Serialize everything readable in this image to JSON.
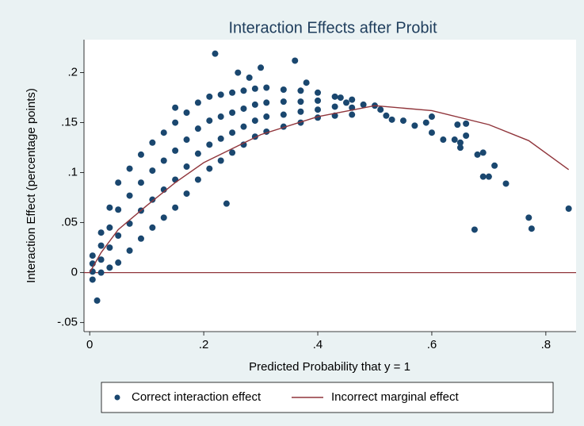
{
  "chart_data": {
    "type": "scatter",
    "title": "Interaction Effects after Probit",
    "x_label": "Predicted Probability that y = 1",
    "y_label": "Interaction Effect (percentage points)",
    "xlim": [
      -0.01,
      0.853
    ],
    "ylim": [
      -0.059,
      0.233
    ],
    "xticks": [
      0,
      {
        "value": 0.2,
        "label": ".2"
      },
      {
        "value": 0.4,
        "label": ".4"
      },
      {
        "value": 0.6,
        "label": ".6"
      },
      {
        "value": 0.8,
        "label": ".8"
      }
    ],
    "yticks": [
      {
        "value": -0.05,
        "label": "-.05"
      },
      0,
      {
        "value": 0.05,
        "label": ".05"
      },
      {
        "value": 0.1,
        "label": ".1"
      },
      {
        "value": 0.15,
        "label": ".15"
      },
      {
        "value": 0.2,
        "label": ".2"
      }
    ],
    "reference_line": 0,
    "legend": "bottom",
    "series": [
      {
        "name": "Correct interaction effect",
        "type": "scatter",
        "color": "#1a476f",
        "x": [
          0.005,
          0.005,
          0.005,
          0.005,
          0.02,
          0.02,
          0.02,
          0.02,
          0.035,
          0.035,
          0.035,
          0.035,
          0.05,
          0.05,
          0.05,
          0.05,
          0.07,
          0.07,
          0.07,
          0.07,
          0.09,
          0.09,
          0.09,
          0.09,
          0.11,
          0.11,
          0.11,
          0.11,
          0.13,
          0.13,
          0.13,
          0.13,
          0.15,
          0.15,
          0.15,
          0.15,
          0.17,
          0.17,
          0.17,
          0.17,
          0.19,
          0.19,
          0.19,
          0.19,
          0.21,
          0.21,
          0.21,
          0.21,
          0.23,
          0.23,
          0.23,
          0.23,
          0.25,
          0.25,
          0.25,
          0.25,
          0.27,
          0.27,
          0.27,
          0.27,
          0.29,
          0.29,
          0.29,
          0.29,
          0.31,
          0.31,
          0.31,
          0.31,
          0.34,
          0.34,
          0.34,
          0.34,
          0.37,
          0.37,
          0.37,
          0.37,
          0.4,
          0.4,
          0.4,
          0.4,
          0.43,
          0.43,
          0.43,
          0.46,
          0.46,
          0.46,
          0.013,
          0.24,
          0.22,
          0.36,
          0.675,
          0.77,
          0.775,
          0.84,
          0.73,
          0.7,
          0.69,
          0.71,
          0.69,
          0.68,
          0.6,
          0.62,
          0.64,
          0.65,
          0.65,
          0.66,
          0.66,
          0.645,
          0.6,
          0.59,
          0.57,
          0.55,
          0.53,
          0.52,
          0.51,
          0.5,
          0.48,
          0.45,
          0.44,
          0.38,
          0.3,
          0.28,
          0.26,
          0.15
        ],
        "y": [
          -0.007,
          0.001,
          0.009,
          0.017,
          0,
          0.013,
          0.027,
          0.04,
          0.005,
          0.025,
          0.045,
          0.065,
          0.01,
          0.037,
          0.063,
          0.09,
          0.022,
          0.049,
          0.077,
          0.104,
          0.034,
          0.062,
          0.09,
          0.118,
          0.045,
          0.073,
          0.102,
          0.13,
          0.055,
          0.083,
          0.112,
          0.14,
          0.065,
          0.093,
          0.122,
          0.15,
          0.079,
          0.106,
          0.133,
          0.16,
          0.093,
          0.119,
          0.144,
          0.17,
          0.104,
          0.128,
          0.152,
          0.176,
          0.112,
          0.134,
          0.156,
          0.178,
          0.12,
          0.14,
          0.16,
          0.18,
          0.128,
          0.146,
          0.164,
          0.182,
          0.136,
          0.152,
          0.168,
          0.184,
          0.141,
          0.156,
          0.17,
          0.185,
          0.146,
          0.158,
          0.171,
          0.183,
          0.15,
          0.161,
          0.171,
          0.182,
          0.155,
          0.163,
          0.172,
          0.18,
          0.157,
          0.166,
          0.176,
          0.158,
          0.165,
          0.173,
          -0.028,
          0.069,
          0.219,
          0.212,
          0.043,
          0.055,
          0.044,
          0.064,
          0.089,
          0.096,
          0.096,
          0.107,
          0.12,
          0.118,
          0.14,
          0.133,
          0.133,
          0.13,
          0.125,
          0.137,
          0.149,
          0.148,
          0.156,
          0.15,
          0.147,
          0.152,
          0.153,
          0.157,
          0.163,
          0.167,
          0.168,
          0.17,
          0.175,
          0.19,
          0.205,
          0.195,
          0.2,
          0.165
        ]
      },
      {
        "name": "Incorrect marginal effect",
        "type": "line",
        "color": "#90353b",
        "x": [
          0,
          0.02,
          0.05,
          0.1,
          0.15,
          0.2,
          0.3,
          0.4,
          0.5,
          0.6,
          0.7,
          0.77,
          0.84
        ],
        "y": [
          0,
          0.02,
          0.043,
          0.067,
          0.09,
          0.11,
          0.138,
          0.156,
          0.167,
          0.162,
          0.148,
          0.132,
          0.103
        ]
      }
    ]
  }
}
